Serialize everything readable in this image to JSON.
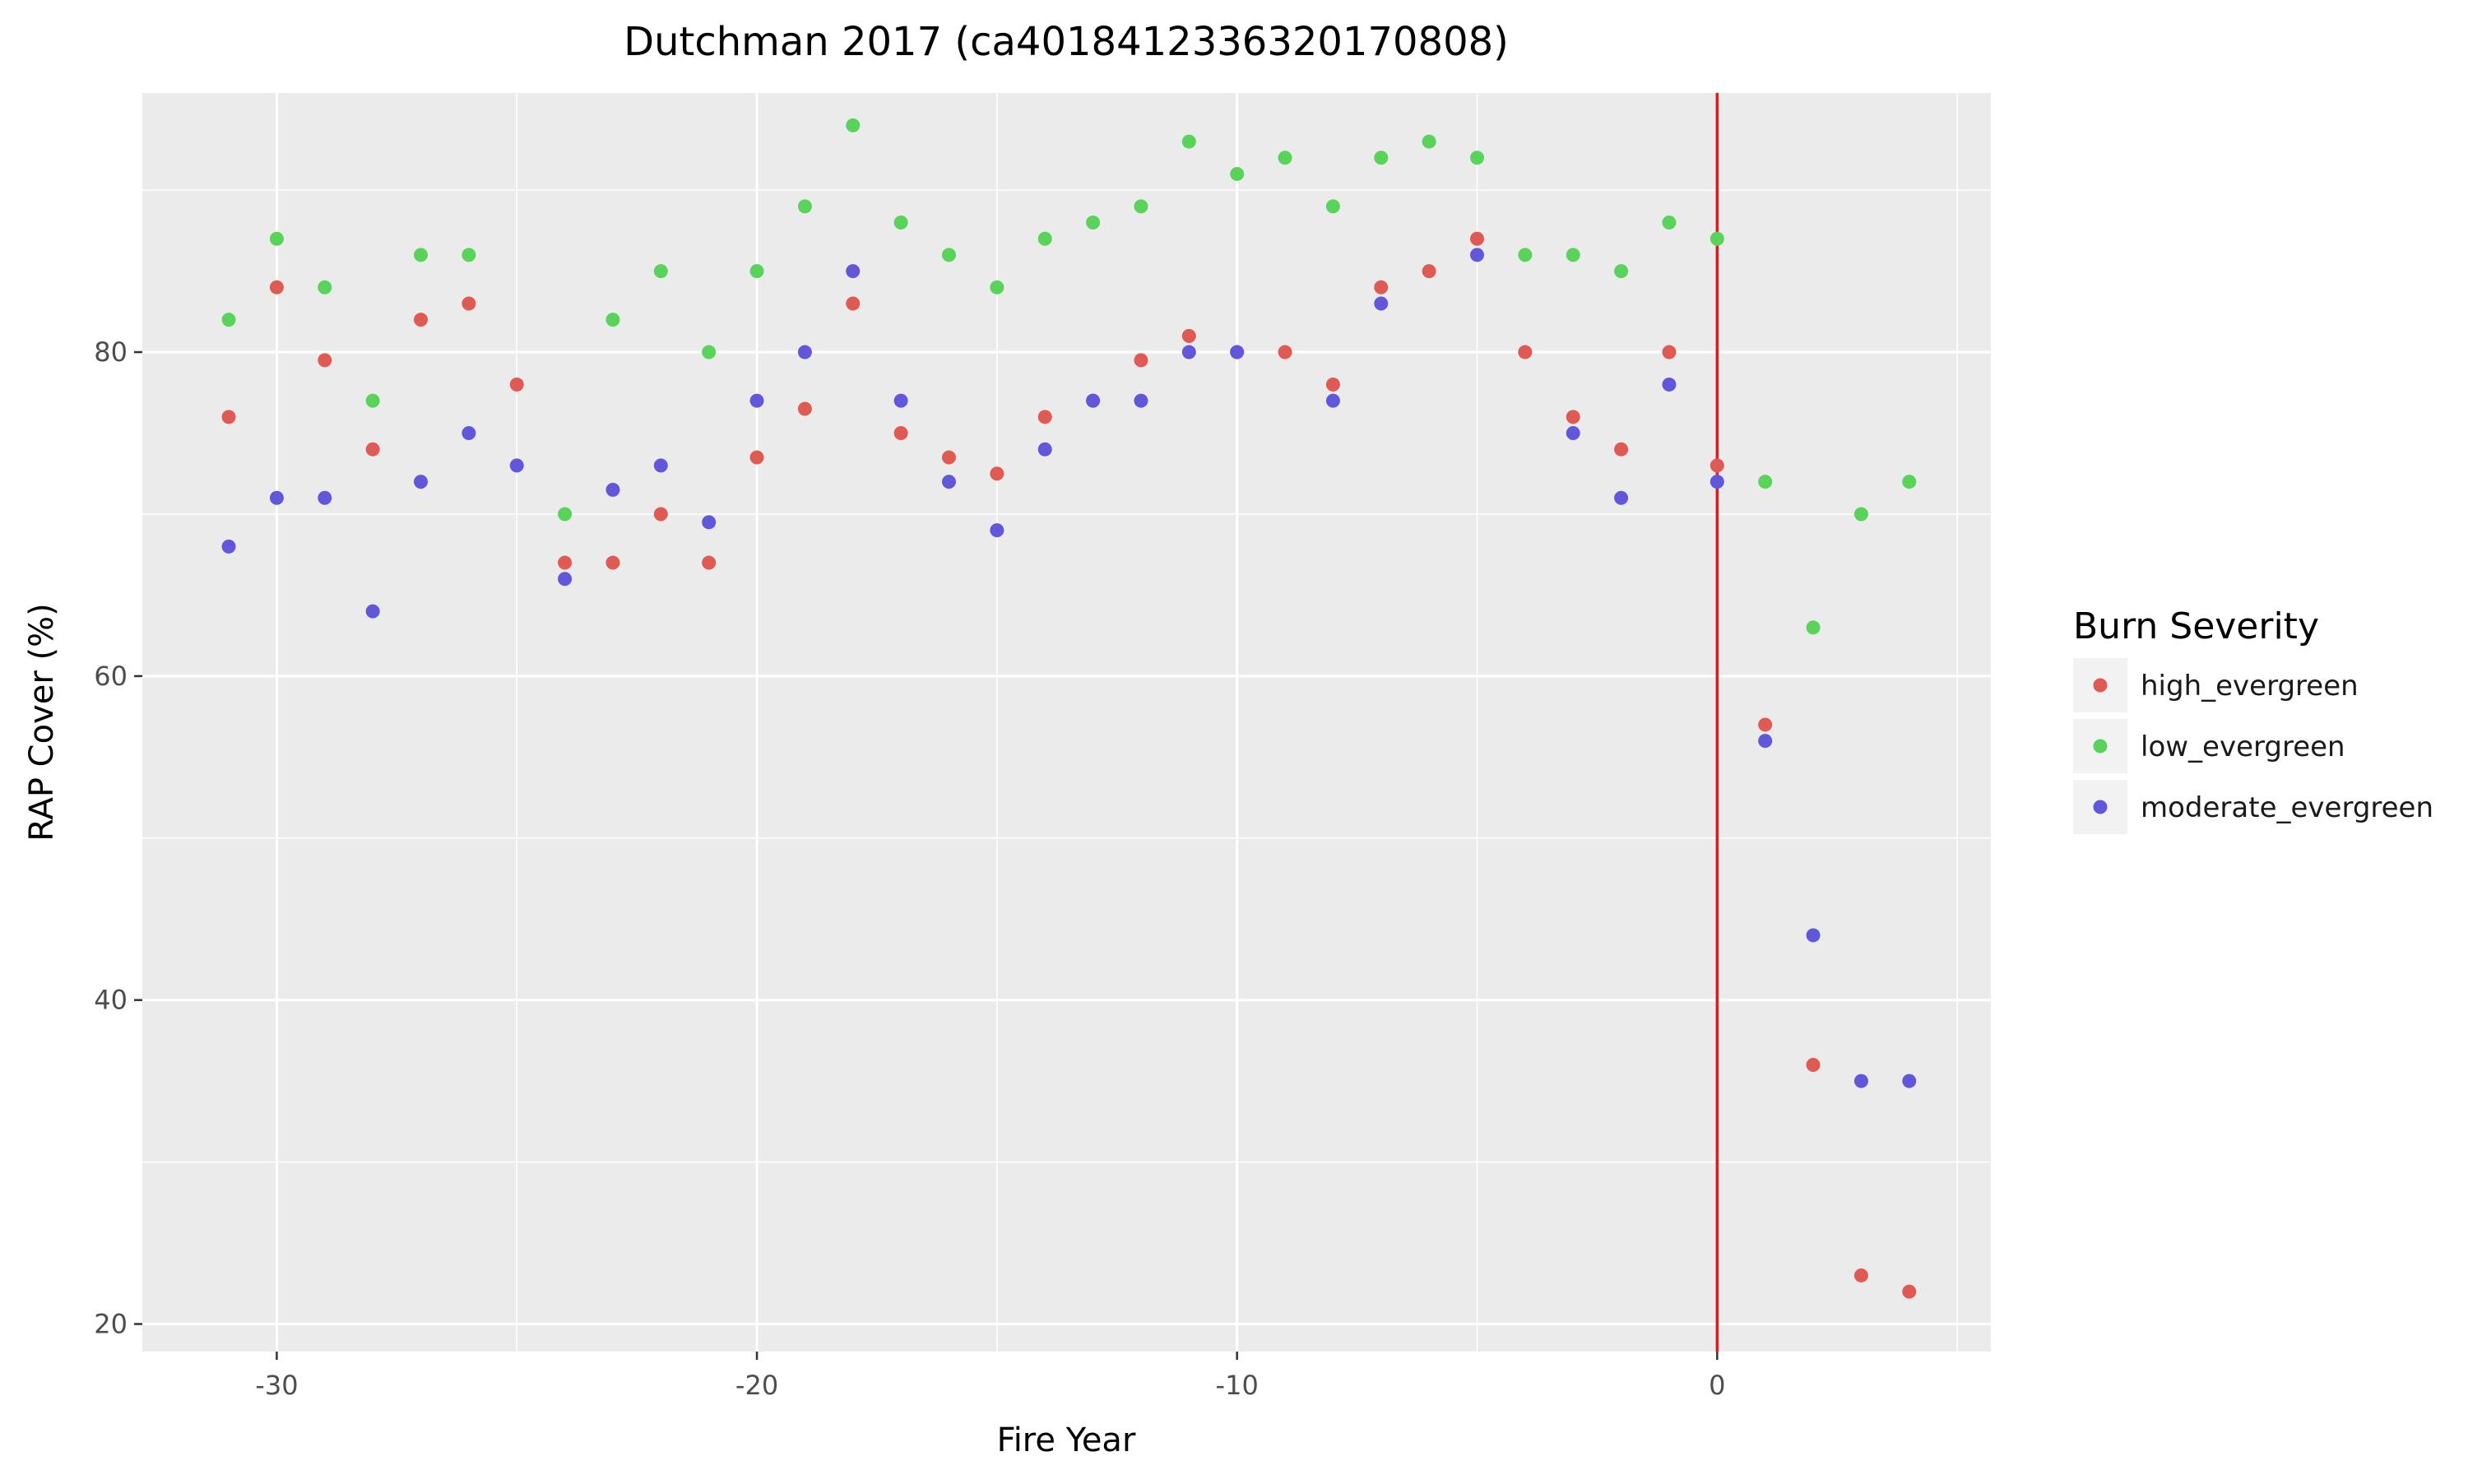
{
  "chart_data": {
    "type": "scatter",
    "title": "Dutchman 2017 (ca4018412336320170808)",
    "xlabel": "Fire Year",
    "ylabel": "RAP Cover (%)",
    "xlim": [
      -32.8,
      5.7
    ],
    "ylim": [
      18.3,
      96.0
    ],
    "x_ticks": [
      -30,
      -20,
      -10,
      0
    ],
    "y_ticks": [
      20,
      40,
      60,
      80
    ],
    "grid": true,
    "vertical_line": {
      "x": 0,
      "color": "#e31a1c"
    },
    "legend": {
      "title": "Burn Severity",
      "position": "right"
    },
    "series": [
      {
        "name": "high_evergreen",
        "color": "#de5a53",
        "points": [
          [
            -31,
            76
          ],
          [
            -30,
            84
          ],
          [
            -29,
            79.5
          ],
          [
            -28,
            74
          ],
          [
            -27,
            82
          ],
          [
            -26,
            83
          ],
          [
            -25,
            78
          ],
          [
            -24,
            67
          ],
          [
            -23,
            67
          ],
          [
            -22,
            70
          ],
          [
            -21,
            67
          ],
          [
            -20,
            73.5
          ],
          [
            -19,
            76.5
          ],
          [
            -18,
            83
          ],
          [
            -17,
            75
          ],
          [
            -16,
            73.5
          ],
          [
            -15,
            72.5
          ],
          [
            -14,
            76
          ],
          [
            -13,
            77
          ],
          [
            -12,
            79.5
          ],
          [
            -11,
            81
          ],
          [
            -10,
            80
          ],
          [
            -9,
            80
          ],
          [
            -8,
            78
          ],
          [
            -7,
            84
          ],
          [
            -6,
            85
          ],
          [
            -5,
            87
          ],
          [
            -4,
            80
          ],
          [
            -3,
            76
          ],
          [
            -2,
            74
          ],
          [
            -1,
            80
          ],
          [
            0,
            73
          ],
          [
            1,
            57
          ],
          [
            2,
            36
          ],
          [
            3,
            23
          ],
          [
            4,
            22
          ]
        ]
      },
      {
        "name": "low_evergreen",
        "color": "#59d35a",
        "points": [
          [
            -31,
            82
          ],
          [
            -30,
            87
          ],
          [
            -29,
            84
          ],
          [
            -28,
            77
          ],
          [
            -27,
            86
          ],
          [
            -26,
            86
          ],
          [
            -24,
            70
          ],
          [
            -23,
            82
          ],
          [
            -22,
            85
          ],
          [
            -21,
            80
          ],
          [
            -20,
            85
          ],
          [
            -19,
            89
          ],
          [
            -18,
            94
          ],
          [
            -17,
            88
          ],
          [
            -16,
            86
          ],
          [
            -15,
            84
          ],
          [
            -14,
            87
          ],
          [
            -13,
            88
          ],
          [
            -12,
            89
          ],
          [
            -11,
            93
          ],
          [
            -10,
            91
          ],
          [
            -9,
            92
          ],
          [
            -8,
            89
          ],
          [
            -7,
            92
          ],
          [
            -6,
            93
          ],
          [
            -5,
            92
          ],
          [
            -4,
            86
          ],
          [
            -3,
            86
          ],
          [
            -2,
            85
          ],
          [
            -1,
            88
          ],
          [
            0,
            87
          ],
          [
            1,
            72
          ],
          [
            2,
            63
          ],
          [
            3,
            70
          ],
          [
            4,
            72
          ]
        ]
      },
      {
        "name": "moderate_evergreen",
        "color": "#6157da",
        "points": [
          [
            -31,
            68
          ],
          [
            -30,
            71
          ],
          [
            -29,
            71
          ],
          [
            -28,
            64
          ],
          [
            -27,
            72
          ],
          [
            -26,
            75
          ],
          [
            -25,
            73
          ],
          [
            -24,
            66
          ],
          [
            -23,
            71.5
          ],
          [
            -22,
            73
          ],
          [
            -21,
            69.5
          ],
          [
            -20,
            77
          ],
          [
            -19,
            80
          ],
          [
            -18,
            85
          ],
          [
            -17,
            77
          ],
          [
            -16,
            72
          ],
          [
            -15,
            69
          ],
          [
            -14,
            74
          ],
          [
            -13,
            77
          ],
          [
            -12,
            77
          ],
          [
            -11,
            80
          ],
          [
            -10,
            80
          ],
          [
            -8,
            77
          ],
          [
            -7,
            83
          ],
          [
            -5,
            86
          ],
          [
            -3,
            75
          ],
          [
            -2,
            71
          ],
          [
            -1,
            78
          ],
          [
            0,
            72
          ],
          [
            1,
            56
          ],
          [
            2,
            44
          ],
          [
            3,
            35
          ],
          [
            4,
            35
          ]
        ]
      }
    ]
  }
}
